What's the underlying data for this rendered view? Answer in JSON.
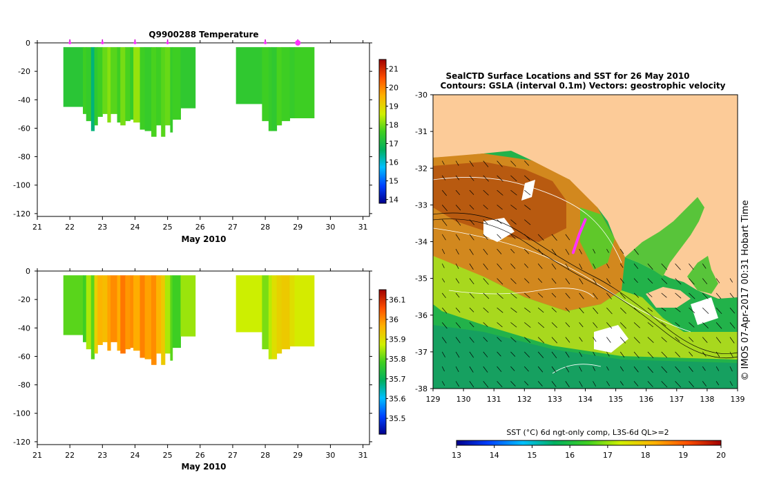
{
  "chart_data": [
    {
      "type": "heatmap",
      "title": "Q9900288  Temperature",
      "xlabel": "May 2010",
      "x_ticks": [
        21,
        22,
        23,
        24,
        25,
        26,
        27,
        28,
        29,
        30,
        31
      ],
      "xlim": [
        21,
        31.2
      ],
      "ylim": [
        -122,
        0
      ],
      "y_ticks": [
        0,
        -20,
        -40,
        -60,
        -80,
        -100,
        -120
      ],
      "profile_markers": [
        22,
        23,
        24,
        25,
        28,
        29
      ],
      "colorbar": {
        "min": 13.8,
        "max": 21.5,
        "ticks": [
          14,
          15,
          16,
          17,
          18,
          19,
          20,
          21
        ]
      },
      "profiles": [
        {
          "x0": 21.8,
          "x1": 22.4,
          "bottom": -45,
          "value": 17.3
        },
        {
          "x0": 22.4,
          "x1": 22.5,
          "bottom": -50,
          "value": 17.6
        },
        {
          "x0": 22.5,
          "x1": 22.65,
          "bottom": -55,
          "value": 17.5
        },
        {
          "x0": 22.65,
          "x1": 22.75,
          "bottom": -62,
          "value": 16.5
        },
        {
          "x0": 22.75,
          "x1": 22.85,
          "bottom": -58,
          "value": 17.4
        },
        {
          "x0": 22.85,
          "x1": 23.0,
          "bottom": -52,
          "value": 17.6
        },
        {
          "x0": 23.0,
          "x1": 23.15,
          "bottom": -50,
          "value": 17.9
        },
        {
          "x0": 23.15,
          "x1": 23.25,
          "bottom": -56,
          "value": 18.1
        },
        {
          "x0": 23.25,
          "x1": 23.45,
          "bottom": -50,
          "value": 17.8
        },
        {
          "x0": 23.45,
          "x1": 23.55,
          "bottom": -56,
          "value": 17.6
        },
        {
          "x0": 23.55,
          "x1": 23.7,
          "bottom": -58,
          "value": 18.0
        },
        {
          "x0": 23.7,
          "x1": 23.85,
          "bottom": -55,
          "value": 17.7
        },
        {
          "x0": 23.85,
          "x1": 23.95,
          "bottom": -54,
          "value": 17.5
        },
        {
          "x0": 23.95,
          "x1": 24.15,
          "bottom": -56,
          "value": 18.2
        },
        {
          "x0": 24.15,
          "x1": 24.3,
          "bottom": -61,
          "value": 17.6
        },
        {
          "x0": 24.3,
          "x1": 24.5,
          "bottom": -62,
          "value": 17.5
        },
        {
          "x0": 24.5,
          "x1": 24.65,
          "bottom": -66,
          "value": 17.7
        },
        {
          "x0": 24.65,
          "x1": 24.8,
          "bottom": -58,
          "value": 17.6
        },
        {
          "x0": 24.8,
          "x1": 24.92,
          "bottom": -66,
          "value": 17.8
        },
        {
          "x0": 24.92,
          "x1": 25.08,
          "bottom": -58,
          "value": 17.9
        },
        {
          "x0": 25.08,
          "x1": 25.15,
          "bottom": -63,
          "value": 17.5
        },
        {
          "x0": 25.15,
          "x1": 25.4,
          "bottom": -54,
          "value": 17.6
        },
        {
          "x0": 25.4,
          "x1": 25.85,
          "bottom": -46,
          "value": 17.4
        },
        {
          "x0": 27.1,
          "x1": 27.9,
          "bottom": -43,
          "value": 17.4
        },
        {
          "x0": 27.9,
          "x1": 28.1,
          "bottom": -55,
          "value": 17.6
        },
        {
          "x0": 28.1,
          "x1": 28.2,
          "bottom": -62,
          "value": 17.5
        },
        {
          "x0": 28.2,
          "x1": 28.35,
          "bottom": -62,
          "value": 17.4
        },
        {
          "x0": 28.35,
          "x1": 28.5,
          "bottom": -58,
          "value": 17.7
        },
        {
          "x0": 28.5,
          "x1": 28.75,
          "bottom": -55,
          "value": 17.6
        },
        {
          "x0": 28.75,
          "x1": 28.9,
          "bottom": -53,
          "value": 17.5
        },
        {
          "x0": 28.9,
          "x1": 29.5,
          "bottom": -53,
          "value": 17.6
        }
      ]
    },
    {
      "type": "heatmap",
      "title": "",
      "xlabel": "May 2010",
      "x_ticks": [
        21,
        22,
        23,
        24,
        25,
        26,
        27,
        28,
        29,
        30,
        31
      ],
      "xlim": [
        21,
        31.2
      ],
      "ylim": [
        -122,
        0
      ],
      "y_ticks": [
        0,
        -20,
        -40,
        -60,
        -80,
        -100,
        -120
      ],
      "colorbar": {
        "min": 35.42,
        "max": 36.15,
        "ticks": [
          35.5,
          35.6,
          35.7,
          35.8,
          35.9,
          36,
          36.1
        ]
      },
      "profiles": [
        {
          "x0": 21.8,
          "x1": 22.4,
          "bottom": -45,
          "value": 35.8
        },
        {
          "x0": 22.4,
          "x1": 22.5,
          "bottom": -50,
          "value": 35.78
        },
        {
          "x0": 22.5,
          "x1": 22.65,
          "bottom": -55,
          "value": 35.85
        },
        {
          "x0": 22.65,
          "x1": 22.75,
          "bottom": -62,
          "value": 35.8
        },
        {
          "x0": 22.75,
          "x1": 22.85,
          "bottom": -58,
          "value": 35.92
        },
        {
          "x0": 22.85,
          "x1": 23.0,
          "bottom": -52,
          "value": 35.96
        },
        {
          "x0": 23.0,
          "x1": 23.15,
          "bottom": -50,
          "value": 35.95
        },
        {
          "x0": 23.15,
          "x1": 23.25,
          "bottom": -56,
          "value": 35.98
        },
        {
          "x0": 23.25,
          "x1": 23.45,
          "bottom": -50,
          "value": 36.0
        },
        {
          "x0": 23.45,
          "x1": 23.55,
          "bottom": -56,
          "value": 35.97
        },
        {
          "x0": 23.55,
          "x1": 23.7,
          "bottom": -58,
          "value": 36.02
        },
        {
          "x0": 23.7,
          "x1": 23.85,
          "bottom": -55,
          "value": 35.99
        },
        {
          "x0": 23.85,
          "x1": 23.95,
          "bottom": -54,
          "value": 36.0
        },
        {
          "x0": 23.95,
          "x1": 24.15,
          "bottom": -56,
          "value": 35.97
        },
        {
          "x0": 24.15,
          "x1": 24.3,
          "bottom": -61,
          "value": 36.01
        },
        {
          "x0": 24.3,
          "x1": 24.5,
          "bottom": -62,
          "value": 35.98
        },
        {
          "x0": 24.5,
          "x1": 24.65,
          "bottom": -66,
          "value": 36.0
        },
        {
          "x0": 24.65,
          "x1": 24.8,
          "bottom": -58,
          "value": 35.96
        },
        {
          "x0": 24.8,
          "x1": 24.92,
          "bottom": -66,
          "value": 35.93
        },
        {
          "x0": 24.92,
          "x1": 25.08,
          "bottom": -58,
          "value": 35.85
        },
        {
          "x0": 25.08,
          "x1": 25.15,
          "bottom": -63,
          "value": 35.8
        },
        {
          "x0": 25.15,
          "x1": 25.4,
          "bottom": -54,
          "value": 35.78
        },
        {
          "x0": 25.4,
          "x1": 25.85,
          "bottom": -46,
          "value": 35.84
        },
        {
          "x0": 27.1,
          "x1": 27.9,
          "bottom": -43,
          "value": 35.87
        },
        {
          "x0": 27.9,
          "x1": 28.1,
          "bottom": -55,
          "value": 35.82
        },
        {
          "x0": 28.1,
          "x1": 28.2,
          "bottom": -62,
          "value": 35.86
        },
        {
          "x0": 28.2,
          "x1": 28.35,
          "bottom": -62,
          "value": 35.9
        },
        {
          "x0": 28.35,
          "x1": 28.5,
          "bottom": -58,
          "value": 35.92
        },
        {
          "x0": 28.5,
          "x1": 28.75,
          "bottom": -55,
          "value": 35.93
        },
        {
          "x0": 28.75,
          "x1": 28.9,
          "bottom": -53,
          "value": 35.9
        },
        {
          "x0": 28.9,
          "x1": 29.5,
          "bottom": -53,
          "value": 35.88
        }
      ]
    },
    {
      "type": "heatmap",
      "title": "SealCTD Surface Locations and SST for 26 May 2010",
      "subtitle": "Contours: GSLA (interval 0.1m) Vectors: geostrophic velocity",
      "x_ticks": [
        129,
        130,
        131,
        132,
        133,
        134,
        135,
        136,
        137,
        138,
        139
      ],
      "y_ticks": [
        -30,
        -31,
        -32,
        -33,
        -34,
        -35,
        -36,
        -37,
        -38
      ],
      "xlim": [
        129,
        139
      ],
      "ylim": [
        -38,
        -30
      ],
      "colorbar": {
        "label": "SST (°C) 6d ngt-only comp, L3S-6d QL>=2",
        "min": 13,
        "max": 20,
        "ticks": [
          13,
          14,
          15,
          16,
          17,
          18,
          19,
          20
        ]
      },
      "seal_track": [
        [
          133.6,
          -34.3
        ],
        [
          133.8,
          -33.8
        ],
        [
          134.0,
          -33.4
        ]
      ],
      "credit": "© IMOS 07-Apr-2017 00:31 Hobart Time"
    }
  ]
}
